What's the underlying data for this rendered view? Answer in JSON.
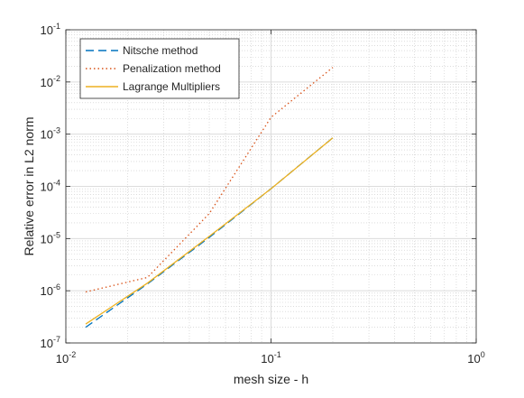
{
  "chart_data": {
    "type": "line",
    "title": "",
    "xlabel": "mesh size - h",
    "ylabel": "Relative error in L2 norm",
    "xscale": "log",
    "yscale": "log",
    "xlim": [
      0.01,
      1
    ],
    "ylim": [
      1e-07,
      0.1
    ],
    "grid": true,
    "minor_grid": true,
    "legend_position": "top-left",
    "x_ticks": [
      {
        "value": 0.01,
        "base": "10",
        "exp": "-2"
      },
      {
        "value": 0.1,
        "base": "10",
        "exp": "-1"
      },
      {
        "value": 1,
        "base": "10",
        "exp": "0"
      }
    ],
    "y_ticks": [
      {
        "value": 1e-07,
        "base": "10",
        "exp": "-7"
      },
      {
        "value": 1e-06,
        "base": "10",
        "exp": "-6"
      },
      {
        "value": 1e-05,
        "base": "10",
        "exp": "-5"
      },
      {
        "value": 0.0001,
        "base": "10",
        "exp": "-4"
      },
      {
        "value": 0.001,
        "base": "10",
        "exp": "-3"
      },
      {
        "value": 0.01,
        "base": "10",
        "exp": "-2"
      },
      {
        "value": 0.1,
        "base": "10",
        "exp": "-1"
      }
    ],
    "series": [
      {
        "name": "Nitsche method",
        "color": "#0072BD",
        "dash": "dashed",
        "x": [
          0.0125,
          0.025,
          0.05,
          0.1,
          0.2
        ],
        "y": [
          2e-07,
          1.35e-06,
          1.05e-05,
          9e-05,
          0.00085
        ]
      },
      {
        "name": "Penalization method",
        "color": "#D95319",
        "dash": "dotted",
        "x": [
          0.0125,
          0.025,
          0.05,
          0.1,
          0.2
        ],
        "y": [
          9.5e-07,
          1.8e-06,
          3e-05,
          0.0021,
          0.019
        ]
      },
      {
        "name": "Lagrange Multipliers",
        "color": "#EDB120",
        "dash": "solid",
        "x": [
          0.0125,
          0.025,
          0.05,
          0.1,
          0.2
        ],
        "y": [
          2.3e-07,
          1.4e-06,
          1.1e-05,
          9e-05,
          0.00085
        ]
      }
    ]
  }
}
